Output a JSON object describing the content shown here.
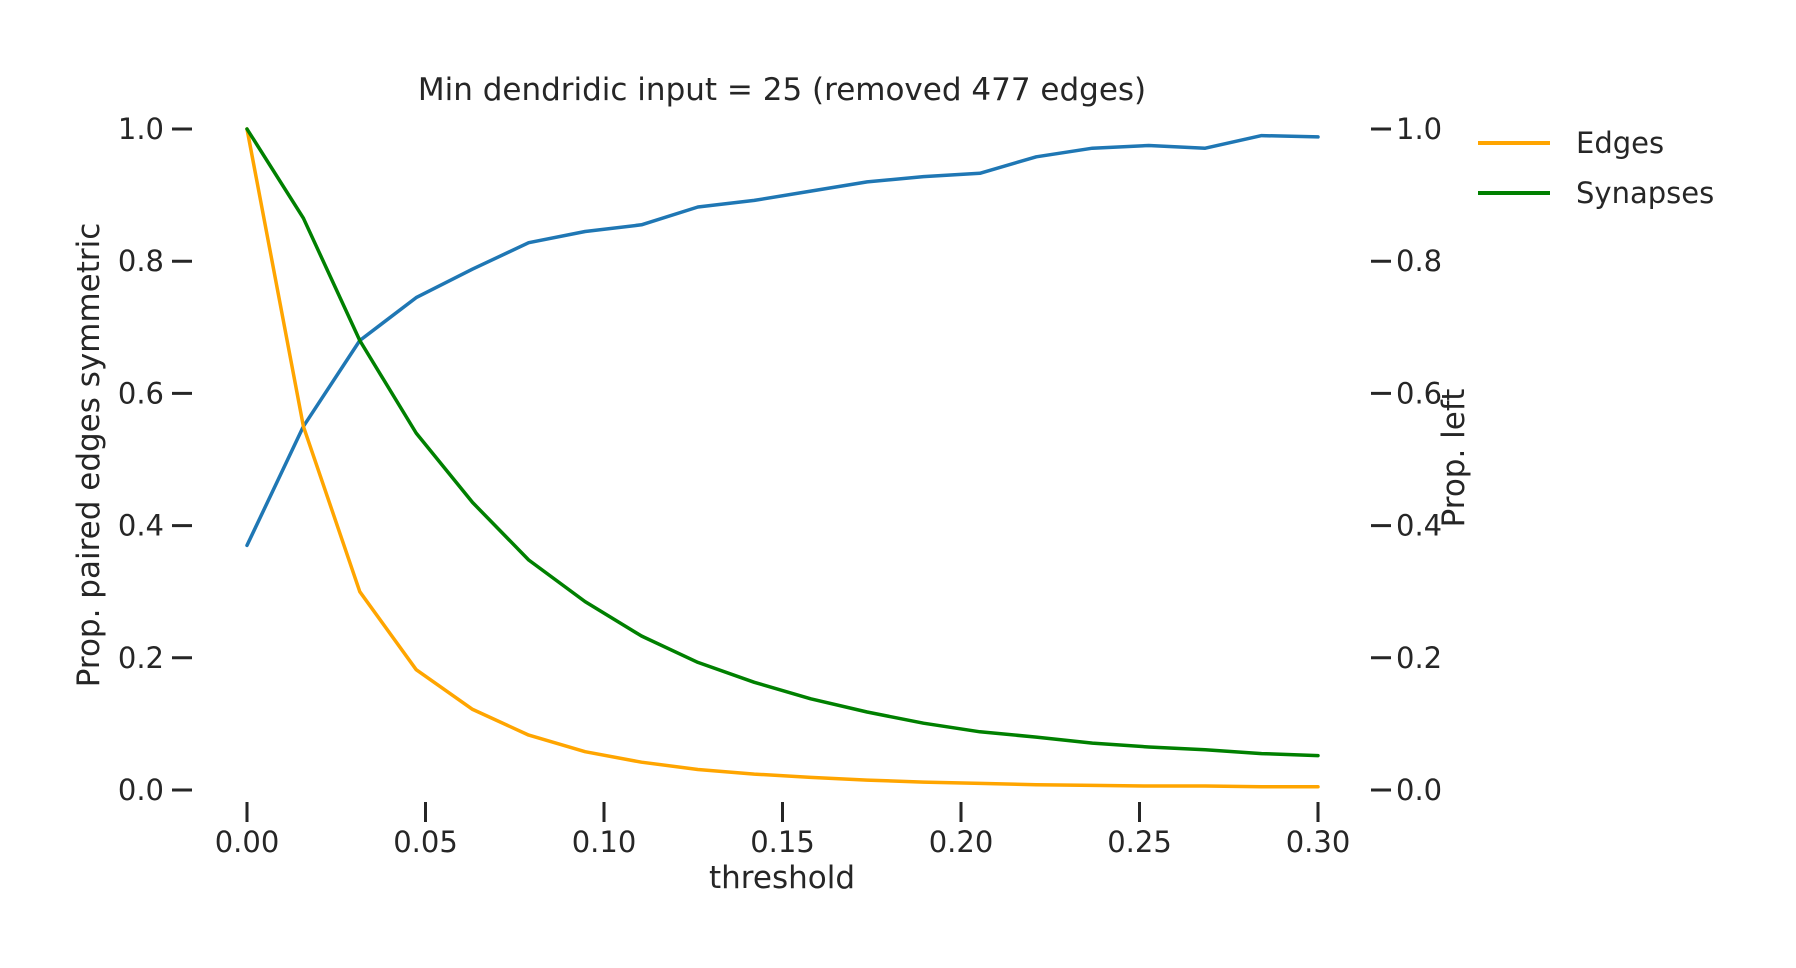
{
  "chart_data": {
    "type": "line",
    "title": "Min dendridic input = 25 (removed 477 edges)",
    "xlabel": "threshold",
    "ylabel_left": "Prop. paired edges symmetric",
    "ylabel_right": "Prop. left",
    "xlim": [
      0.0,
      0.3
    ],
    "ylim_left": [
      0.0,
      1.0
    ],
    "ylim_right": [
      0.0,
      1.0
    ],
    "x_ticks": [
      "0.00",
      "0.05",
      "0.10",
      "0.15",
      "0.20",
      "0.25",
      "0.30"
    ],
    "y_ticks_left": [
      "0.0",
      "0.2",
      "0.4",
      "0.6",
      "0.8",
      "1.0"
    ],
    "y_ticks_right": [
      "0.0",
      "0.2",
      "0.4",
      "0.6",
      "0.8",
      "1.0"
    ],
    "grid": false,
    "legend_position": "outside-top-right",
    "x": [
      0.0,
      0.0158,
      0.0316,
      0.0474,
      0.0632,
      0.0789,
      0.0947,
      0.1105,
      0.1263,
      0.1421,
      0.1579,
      0.1737,
      0.1895,
      0.2053,
      0.2211,
      0.2368,
      0.2526,
      0.2684,
      0.2842,
      0.3
    ],
    "series": [
      {
        "axis": "left",
        "color": "#1f77b4",
        "values": [
          0.37,
          0.55,
          0.68,
          0.745,
          0.788,
          0.828,
          0.845,
          0.855,
          0.882,
          0.892,
          0.906,
          0.92,
          0.928,
          0.933,
          0.958,
          0.971,
          0.975,
          0.971,
          0.99,
          0.988
        ]
      },
      {
        "name": "Edges",
        "axis": "right",
        "color": "#ffa500",
        "values": [
          1.0,
          0.55,
          0.3,
          0.182,
          0.122,
          0.083,
          0.058,
          0.042,
          0.031,
          0.024,
          0.019,
          0.015,
          0.012,
          0.01,
          0.008,
          0.007,
          0.006,
          0.006,
          0.005,
          0.005
        ]
      },
      {
        "name": "Synapses",
        "axis": "right",
        "color": "#008000",
        "values": [
          1.0,
          0.865,
          0.68,
          0.54,
          0.435,
          0.348,
          0.285,
          0.233,
          0.193,
          0.163,
          0.138,
          0.118,
          0.101,
          0.088,
          0.08,
          0.071,
          0.065,
          0.061,
          0.055,
          0.052
        ]
      }
    ]
  }
}
